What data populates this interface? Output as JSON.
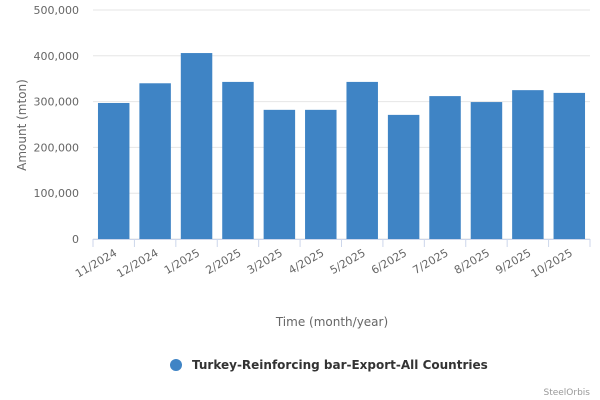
{
  "chart_data": {
    "type": "bar",
    "x_label": "Time (month/year)",
    "y_label": "Amount (mton)",
    "categories": [
      "11/2024",
      "12/2024",
      "1/2025",
      "2/2025",
      "3/2025",
      "4/2025",
      "5/2025",
      "6/2025",
      "7/2025",
      "8/2025",
      "9/2025",
      "10/2025"
    ],
    "series": [
      {
        "name": "Turkey-Reinforcing bar-Export-All Countries",
        "color": "#3f84c5",
        "values": [
          297000,
          340000,
          406000,
          343000,
          282000,
          282000,
          343000,
          271000,
          312000,
          299000,
          325000,
          319000
        ]
      }
    ],
    "ylim": [
      0,
      500000
    ],
    "yticks": [
      0,
      {
        "value": 100000,
        "label": "100,000"
      },
      {
        "value": 200000,
        "label": "200,000"
      },
      {
        "value": 300000,
        "label": "300,000"
      },
      {
        "value": 400000,
        "label": "400,000"
      },
      {
        "value": 500000,
        "label": "500,000"
      }
    ],
    "grid": true,
    "legend": "bottom",
    "credits": "SteelOrbis"
  }
}
